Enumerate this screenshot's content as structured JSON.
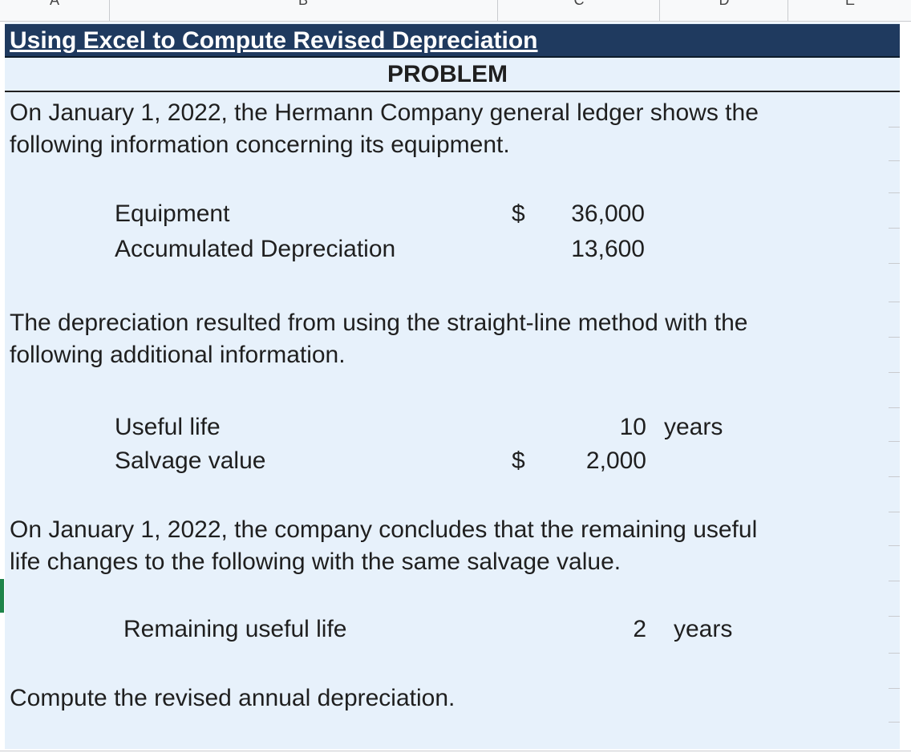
{
  "columns": [
    "A",
    "B",
    "C",
    "D",
    "E"
  ],
  "title": "Using Excel to Compute Revised Depreciation",
  "problem_heading": "PROBLEM",
  "intro": {
    "line1": "On January 1, 2022, the Hermann Company general ledger shows the",
    "line2": "following information concerning its equipment."
  },
  "ledger": {
    "equipment_label": "Equipment",
    "equipment_currency": "$",
    "equipment_value": "36,000",
    "accum_label": "Accumulated Depreciation",
    "accum_value": "13,600"
  },
  "method": {
    "line1": "The depreciation resulted from using the straight-line method with the",
    "line2": "following additional information."
  },
  "additional": {
    "useful_life_label": "Useful life",
    "useful_life_value": "10",
    "useful_life_unit": "years",
    "salvage_label": "Salvage value",
    "salvage_currency": "$",
    "salvage_value": "2,000"
  },
  "change": {
    "line1": "On January 1, 2022, the company concludes that the remaining useful",
    "line2": "life changes to the following with the same salvage value."
  },
  "remaining": {
    "label": "Remaining useful life",
    "value": "2",
    "unit": "years"
  },
  "instruction": "Compute the revised annual depreciation.",
  "colors": {
    "title_bar": "#1f3a5f",
    "sheet_fill": "#e7f1fb",
    "selection_marker": "#1e8449"
  }
}
